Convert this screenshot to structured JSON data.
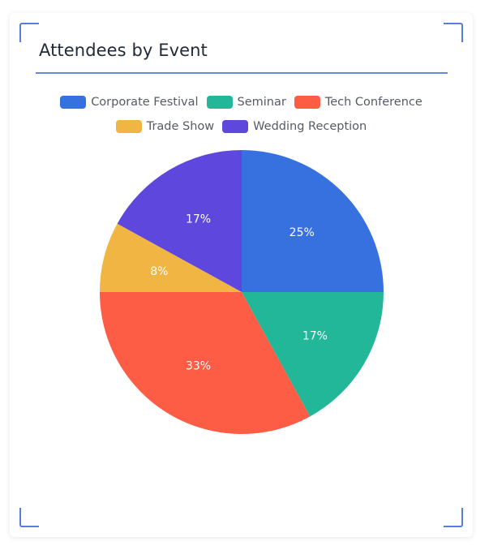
{
  "chart_data": {
    "type": "pie",
    "title": "Attendees by Event",
    "legend_position": "top",
    "slices": [
      {
        "name": "Corporate Festival",
        "value": 25,
        "label": "25%",
        "color": "#3771e0"
      },
      {
        "name": "Seminar",
        "value": 17,
        "label": "17%",
        "color": "#22b799"
      },
      {
        "name": "Tech Conference",
        "value": 33,
        "label": "33%",
        "color": "#fd5c45"
      },
      {
        "name": "Trade Show",
        "value": 8,
        "label": "8%",
        "color": "#f0b542"
      },
      {
        "name": "Wedding Reception",
        "value": 17,
        "label": "17%",
        "color": "#5e47dd"
      }
    ]
  },
  "colors": {
    "accent": "#5a7bd8",
    "title_text": "#1f2937",
    "legend_text": "#555b66"
  }
}
